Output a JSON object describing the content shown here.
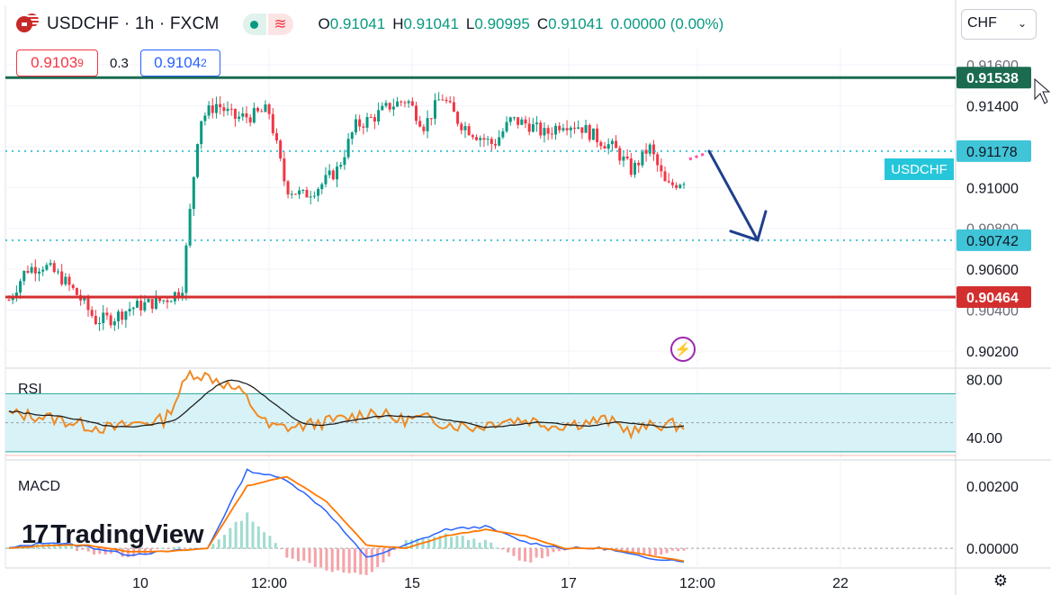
{
  "header": {
    "symbol": "USDCHF · 1h · FXCM",
    "ohlc": {
      "o_label": "O",
      "o": "0.91041",
      "h_label": "H",
      "h": "0.91041",
      "l_label": "L",
      "l": "0.90995",
      "c_label": "C",
      "c": "0.91041",
      "change": "0.00000 (0.00%)"
    },
    "icons": [
      "us-flag-icon",
      "swiss-flag-icon"
    ]
  },
  "trade": {
    "sell_main": "0.9103",
    "sell_sup": "9",
    "spread": "0.3",
    "buy_main": "0.9104",
    "buy_sup": "2"
  },
  "currency": {
    "selected": "CHF"
  },
  "symbol_tag": "USDCHF",
  "panes": {
    "rsi": "RSI",
    "macd": "MACD"
  },
  "branding": {
    "logo_text": "TradingView"
  },
  "colors": {
    "up": "#089981",
    "down": "#f23645",
    "level_green": "#1b6b50",
    "level_red": "#d32f2f",
    "dotted": "#40c4d8",
    "arrow": "#1e3f8c",
    "rsi": "#f08a24",
    "rsi_ma": "#202020",
    "macd": "#2962ff",
    "signal": "#ff7800"
  },
  "chart_data": {
    "type": "candlestick",
    "y_ticks": [
      "0.91400",
      "0.91000",
      "0.90600",
      "0.90200"
    ],
    "y_ticks_partial": [
      "0.91600",
      "0.90800",
      "0.90400"
    ],
    "x_ticks": [
      "10",
      "12:00",
      "15",
      "17",
      "12:00",
      "22"
    ],
    "levels": [
      {
        "value": 0.91538,
        "label": "0.91538",
        "style": "solid",
        "color": "#1b6b50"
      },
      {
        "value": 0.91178,
        "label": "0.91178",
        "style": "dotted",
        "color": "#40c4d8"
      },
      {
        "value": 0.90742,
        "label": "0.90742",
        "style": "dotted",
        "color": "#40c4d8"
      },
      {
        "value": 0.90464,
        "label": "0.90464",
        "style": "solid",
        "color": "#d32f2f"
      }
    ],
    "ylim": [
      0.9012,
      0.9168
    ],
    "candle_keypoints": [
      0.9045,
      0.906,
      0.9062,
      0.9056,
      0.9047,
      0.9035,
      0.9036,
      0.9041,
      0.9043,
      0.9045,
      0.905,
      0.9133,
      0.9141,
      0.9134,
      0.9135,
      0.9138,
      0.91,
      0.9096,
      0.9101,
      0.9109,
      0.913,
      0.9134,
      0.914,
      0.9143,
      0.913,
      0.9145,
      0.9132,
      0.9126,
      0.9121,
      0.9133,
      0.9131,
      0.9126,
      0.9132,
      0.913,
      0.9124,
      0.9119,
      0.9108,
      0.912,
      0.91,
      0.9104
    ],
    "projection": {
      "from": 0.91178,
      "to": 0.90742
    },
    "rsi": {
      "ticks": [
        "80.00",
        "40.00"
      ],
      "band": [
        70,
        30
      ],
      "range": [
        25,
        87
      ],
      "keypoints": [
        56,
        55,
        52,
        48,
        46,
        50,
        52,
        85,
        80,
        70,
        47,
        47,
        50,
        53,
        58,
        52,
        53,
        49,
        47,
        52,
        52,
        48,
        50,
        52,
        44,
        49,
        48
      ]
    },
    "macd": {
      "ticks": [
        "0.00200",
        "0.00000"
      ],
      "range": [
        -0.0006,
        0.0028
      ],
      "macd_keypoints": [
        0.0,
        0.0002,
        5e-05,
        -0.0002,
        -0.0001,
        0.0,
        0.0025,
        0.0022,
        0.0012,
        -0.0003,
        0.0001,
        0.0006,
        0.0007,
        0.0002,
        0.0,
        0.0,
        -0.0003,
        -0.0004
      ],
      "signal_keypoints": [
        0.0,
        0.0001,
        0.0001,
        -0.0001,
        -0.0001,
        0.0,
        0.002,
        0.0023,
        0.0015,
        0.0001,
        0.0,
        0.0004,
        0.0006,
        0.0004,
        0.0,
        0.0,
        -0.0002,
        -0.0004
      ]
    }
  }
}
